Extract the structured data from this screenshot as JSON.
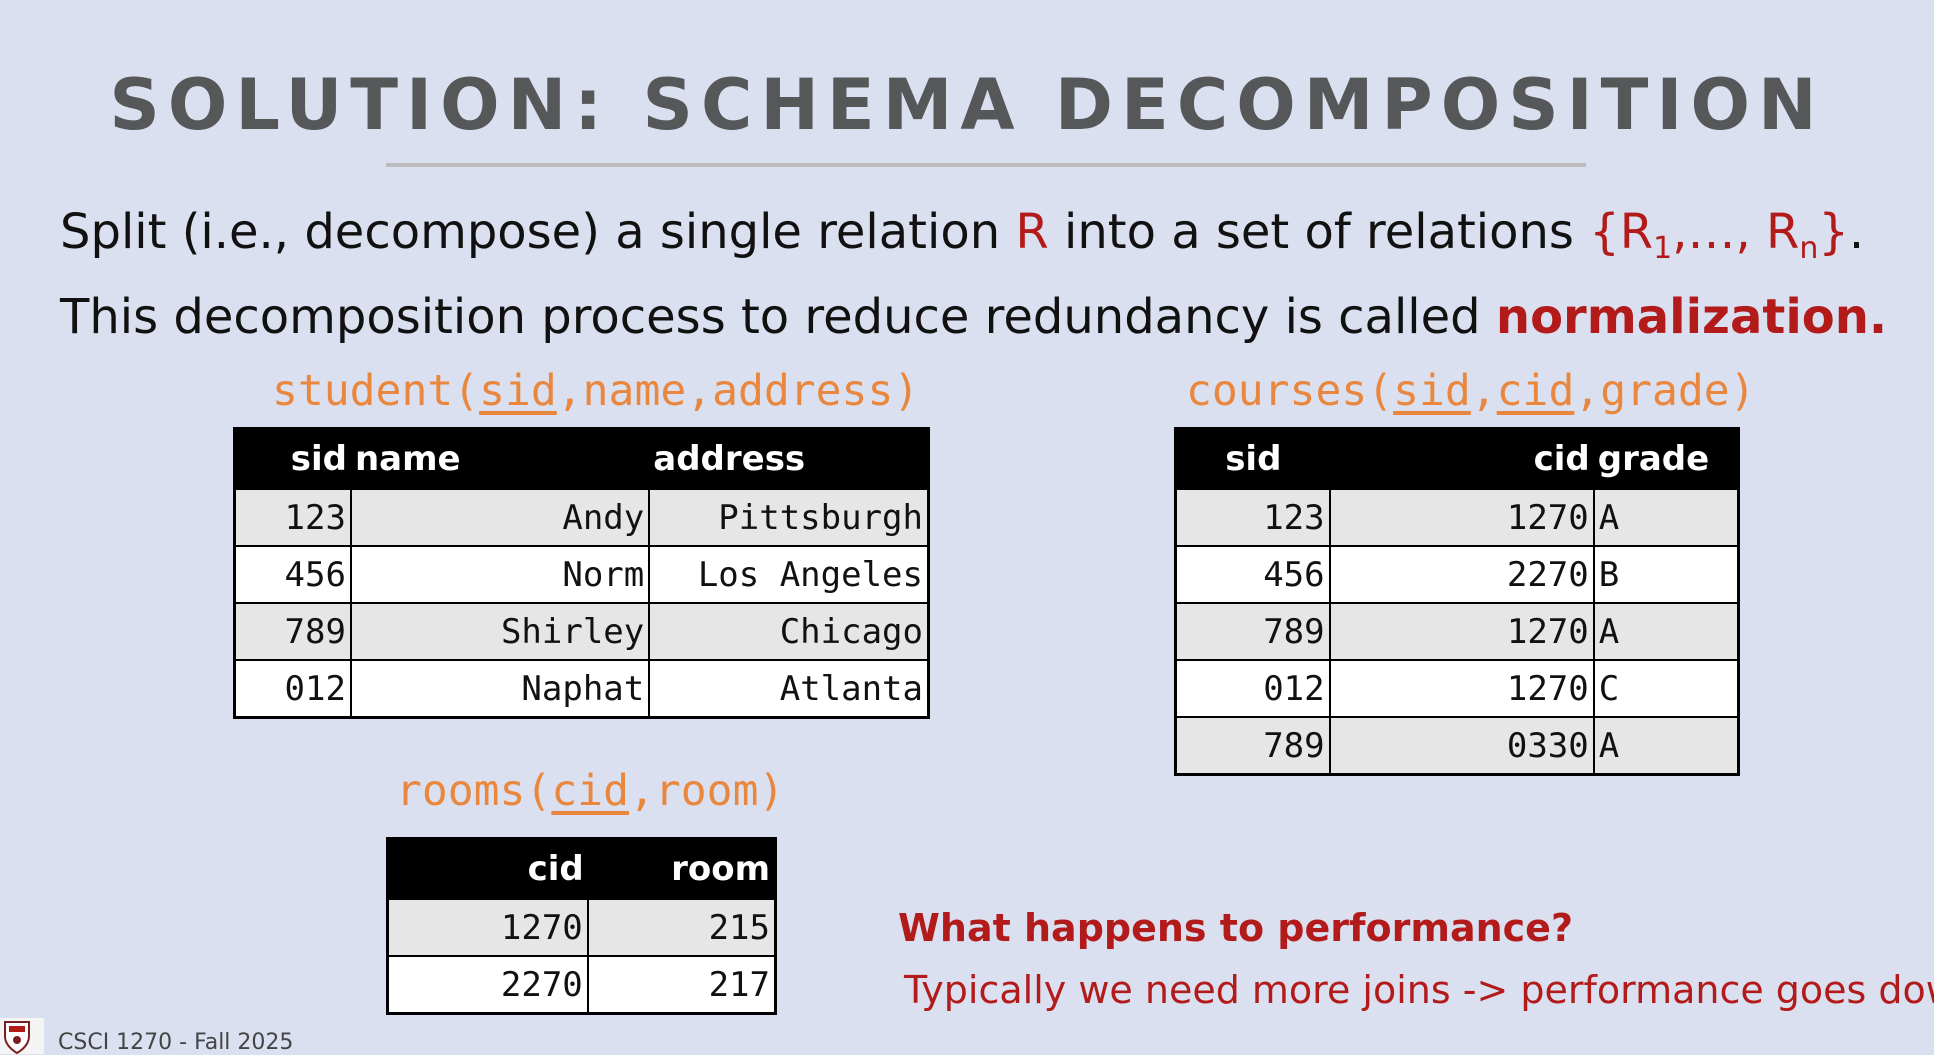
{
  "title": "SOLUTION: SCHEMA DECOMPOSITION",
  "intro": {
    "line1_a": "Split (i.e., decompose) a single relation ",
    "line1_r": "R",
    "line1_b": " into a set of relations ",
    "set_open": "{R",
    "set_sub1": "1",
    "set_mid": ",…, R",
    "set_subn": "n",
    "set_close": "}",
    "line1_end": ".",
    "line2_a": "This decomposition process to reduce redundancy is called ",
    "line2_b": "normalization."
  },
  "student": {
    "schema_name": "student(",
    "schema_key": "sid",
    "schema_rest": ",name,address)",
    "headers": [
      "sid",
      "name",
      "address"
    ],
    "rows": [
      [
        "123",
        "Andy",
        "Pittsburgh"
      ],
      [
        "456",
        "Norm",
        "Los Angeles"
      ],
      [
        "789",
        "Shirley",
        "Chicago"
      ],
      [
        "012",
        "Naphat",
        "Atlanta"
      ]
    ]
  },
  "courses": {
    "schema_name": "courses(",
    "schema_key1": "sid",
    "schema_comma": ",",
    "schema_key2": "cid",
    "schema_rest": ",grade)",
    "headers": [
      "sid",
      "cid",
      "grade"
    ],
    "rows": [
      [
        "123",
        "1270",
        "A"
      ],
      [
        "456",
        "2270",
        "B"
      ],
      [
        "789",
        "1270",
        "A"
      ],
      [
        "012",
        "1270",
        "C"
      ],
      [
        "789",
        "0330",
        "A"
      ]
    ]
  },
  "rooms": {
    "schema_name": "rooms(",
    "schema_key": "cid",
    "schema_rest": ",room)",
    "headers": [
      "cid",
      "room"
    ],
    "rows": [
      [
        "1270",
        "215"
      ],
      [
        "2270",
        "217"
      ]
    ]
  },
  "question": "What happens to performance?",
  "answer": "Typically we need more joins -> performance goes down!",
  "footer": "CSCI 1270 - Fall 2025",
  "colors": {
    "background": "#dbe0f0",
    "accent_red": "#b31b1b",
    "schema_orange": "#e9873e",
    "title_gray": "#555759"
  }
}
